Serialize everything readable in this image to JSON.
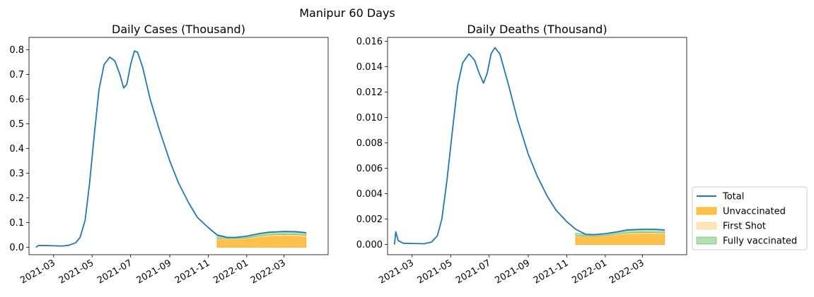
{
  "figure": {
    "suptitle": "Manipur 60 Days"
  },
  "legend": {
    "placement": "lower-right outside",
    "items": [
      {
        "label": "Total",
        "kind": "line",
        "color": "#1f77b4"
      },
      {
        "label": "Unvaccinated",
        "kind": "patch",
        "color": "#ffa500",
        "alpha": 0.7
      },
      {
        "label": "First Shot",
        "kind": "patch",
        "color": "#ffd27f",
        "alpha": 0.55
      },
      {
        "label": "Fully vaccinated",
        "kind": "patch",
        "color": "#2ca02c",
        "alpha": 0.35
      }
    ]
  },
  "chart_data": [
    {
      "type": "area",
      "title": "Daily Cases (Thousand)",
      "xlabel": "",
      "ylabel": "",
      "ylim": [
        -0.03,
        0.85
      ],
      "xlim": [
        "2021-01-21",
        "2022-05-10"
      ],
      "grid": false,
      "x_ticks": [
        "2021-03",
        "2021-05",
        "2021-07",
        "2021-09",
        "2021-11",
        "2022-01",
        "2022-03"
      ],
      "y_ticks": [
        "0.0",
        "0.1",
        "0.2",
        "0.3",
        "0.4",
        "0.5",
        "0.6",
        "0.7",
        "0.8"
      ],
      "y_tick_values": [
        0,
        0.1,
        0.2,
        0.3,
        0.4,
        0.5,
        0.6,
        0.7,
        0.8
      ],
      "series": [
        {
          "name": "Total",
          "points": [
            [
              "2021-02-01",
              0.0
            ],
            [
              "2021-02-05",
              0.007
            ],
            [
              "2021-02-15",
              0.007
            ],
            [
              "2021-03-01",
              0.006
            ],
            [
              "2021-03-15",
              0.005
            ],
            [
              "2021-03-25",
              0.008
            ],
            [
              "2021-04-05",
              0.018
            ],
            [
              "2021-04-12",
              0.04
            ],
            [
              "2021-04-20",
              0.11
            ],
            [
              "2021-04-27",
              0.26
            ],
            [
              "2021-05-05",
              0.47
            ],
            [
              "2021-05-12",
              0.64
            ],
            [
              "2021-05-20",
              0.74
            ],
            [
              "2021-05-29",
              0.77
            ],
            [
              "2021-06-06",
              0.755
            ],
            [
              "2021-06-14",
              0.7
            ],
            [
              "2021-06-20",
              0.645
            ],
            [
              "2021-06-25",
              0.66
            ],
            [
              "2021-07-01",
              0.74
            ],
            [
              "2021-07-07",
              0.795
            ],
            [
              "2021-07-12",
              0.79
            ],
            [
              "2021-07-20",
              0.73
            ],
            [
              "2021-08-01",
              0.6
            ],
            [
              "2021-08-15",
              0.48
            ],
            [
              "2021-09-01",
              0.35
            ],
            [
              "2021-09-15",
              0.26
            ],
            [
              "2021-10-01",
              0.18
            ],
            [
              "2021-10-15",
              0.12
            ],
            [
              "2021-11-01",
              0.08
            ],
            [
              "2021-11-15",
              0.05
            ],
            [
              "2021-12-01",
              0.04
            ],
            [
              "2021-12-15",
              0.04
            ],
            [
              "2022-01-01",
              0.045
            ],
            [
              "2022-01-20",
              0.055
            ],
            [
              "2022-02-05",
              0.061
            ],
            [
              "2022-03-01",
              0.064
            ],
            [
              "2022-03-20",
              0.063
            ],
            [
              "2022-04-05",
              0.059
            ]
          ]
        },
        {
          "name": "Unvaccinated",
          "points": [
            [
              "2021-11-15",
              0.031
            ],
            [
              "2021-12-01",
              0.031
            ],
            [
              "2021-12-15",
              0.031
            ],
            [
              "2022-01-01",
              0.034
            ],
            [
              "2022-01-20",
              0.04
            ],
            [
              "2022-02-05",
              0.044
            ],
            [
              "2022-03-01",
              0.046
            ],
            [
              "2022-03-20",
              0.045
            ],
            [
              "2022-04-05",
              0.042
            ]
          ]
        },
        {
          "name": "First Shot",
          "points": [
            [
              "2021-11-15",
              0.035
            ],
            [
              "2021-12-01",
              0.035
            ],
            [
              "2021-12-15",
              0.035
            ],
            [
              "2022-01-01",
              0.038
            ],
            [
              "2022-01-20",
              0.045
            ],
            [
              "2022-02-05",
              0.05
            ],
            [
              "2022-03-01",
              0.052
            ],
            [
              "2022-03-20",
              0.051
            ],
            [
              "2022-04-05",
              0.048
            ]
          ]
        },
        {
          "name": "Fully vaccinated",
          "points": [
            [
              "2021-11-15",
              0.045
            ],
            [
              "2021-12-01",
              0.04
            ],
            [
              "2021-12-15",
              0.04
            ],
            [
              "2022-01-01",
              0.045
            ],
            [
              "2022-01-20",
              0.055
            ],
            [
              "2022-02-05",
              0.061
            ],
            [
              "2022-03-01",
              0.064
            ],
            [
              "2022-03-20",
              0.063
            ],
            [
              "2022-04-05",
              0.059
            ]
          ]
        }
      ]
    },
    {
      "type": "area",
      "title": "Daily Deaths (Thousand)",
      "xlabel": "",
      "ylabel": "",
      "ylim": [
        -0.0008,
        0.0163
      ],
      "xlim": [
        "2021-01-21",
        "2022-05-10"
      ],
      "grid": false,
      "x_ticks": [
        "2021-03",
        "2021-05",
        "2021-07",
        "2021-09",
        "2021-11",
        "2022-01",
        "2022-03"
      ],
      "y_ticks": [
        "0.000",
        "0.002",
        "0.004",
        "0.006",
        "0.008",
        "0.010",
        "0.012",
        "0.014",
        "0.016"
      ],
      "y_tick_values": [
        0,
        0.002,
        0.004,
        0.006,
        0.008,
        0.01,
        0.012,
        0.014,
        0.016
      ],
      "series": [
        {
          "name": "Total",
          "points": [
            [
              "2021-02-01",
              0.0
            ],
            [
              "2021-02-03",
              0.001
            ],
            [
              "2021-02-07",
              0.0003
            ],
            [
              "2021-02-15",
              0.0001
            ],
            [
              "2021-03-01",
              8e-05
            ],
            [
              "2021-03-20",
              6e-05
            ],
            [
              "2021-04-01",
              0.0002
            ],
            [
              "2021-04-10",
              0.0007
            ],
            [
              "2021-04-17",
              0.002
            ],
            [
              "2021-04-25",
              0.005
            ],
            [
              "2021-05-05",
              0.0095
            ],
            [
              "2021-05-12",
              0.0125
            ],
            [
              "2021-05-20",
              0.0143
            ],
            [
              "2021-05-30",
              0.015
            ],
            [
              "2021-06-08",
              0.0145
            ],
            [
              "2021-06-15",
              0.0135
            ],
            [
              "2021-06-22",
              0.0127
            ],
            [
              "2021-06-28",
              0.0135
            ],
            [
              "2021-07-04",
              0.015
            ],
            [
              "2021-07-10",
              0.0155
            ],
            [
              "2021-07-18",
              0.015
            ],
            [
              "2021-08-01",
              0.0125
            ],
            [
              "2021-08-15",
              0.0098
            ],
            [
              "2021-09-01",
              0.0071
            ],
            [
              "2021-09-15",
              0.0054
            ],
            [
              "2021-10-01",
              0.0038
            ],
            [
              "2021-10-15",
              0.0027
            ],
            [
              "2021-11-01",
              0.0018
            ],
            [
              "2021-11-15",
              0.0012
            ],
            [
              "2021-12-01",
              0.0008
            ],
            [
              "2021-12-15",
              0.00078
            ],
            [
              "2022-01-01",
              0.00085
            ],
            [
              "2022-01-20",
              0.001
            ],
            [
              "2022-02-05",
              0.00115
            ],
            [
              "2022-03-01",
              0.0012
            ],
            [
              "2022-03-20",
              0.0012
            ],
            [
              "2022-04-05",
              0.00115
            ]
          ]
        },
        {
          "name": "Unvaccinated",
          "points": [
            [
              "2021-11-15",
              0.0006
            ],
            [
              "2021-12-01",
              0.0006
            ],
            [
              "2021-12-15",
              0.0006
            ],
            [
              "2022-01-01",
              0.00064
            ],
            [
              "2022-01-20",
              0.00075
            ],
            [
              "2022-02-05",
              0.00082
            ],
            [
              "2022-03-01",
              0.00086
            ],
            [
              "2022-03-20",
              0.00085
            ],
            [
              "2022-04-05",
              0.0008
            ]
          ]
        },
        {
          "name": "First Shot",
          "points": [
            [
              "2021-11-15",
              0.00068
            ],
            [
              "2021-12-01",
              0.00066
            ],
            [
              "2021-12-15",
              0.00066
            ],
            [
              "2022-01-01",
              0.0007
            ],
            [
              "2022-01-20",
              0.00083
            ],
            [
              "2022-02-05",
              0.00092
            ],
            [
              "2022-03-01",
              0.00096
            ],
            [
              "2022-03-20",
              0.00095
            ],
            [
              "2022-04-05",
              0.0009
            ]
          ]
        },
        {
          "name": "Fully vaccinated",
          "points": [
            [
              "2021-11-15",
              0.0009
            ],
            [
              "2021-12-01",
              0.0008
            ],
            [
              "2021-12-15",
              0.00078
            ],
            [
              "2022-01-01",
              0.00085
            ],
            [
              "2022-01-20",
              0.001
            ],
            [
              "2022-02-05",
              0.00115
            ],
            [
              "2022-03-01",
              0.0012
            ],
            [
              "2022-03-20",
              0.0012
            ],
            [
              "2022-04-05",
              0.00115
            ]
          ]
        }
      ]
    }
  ]
}
